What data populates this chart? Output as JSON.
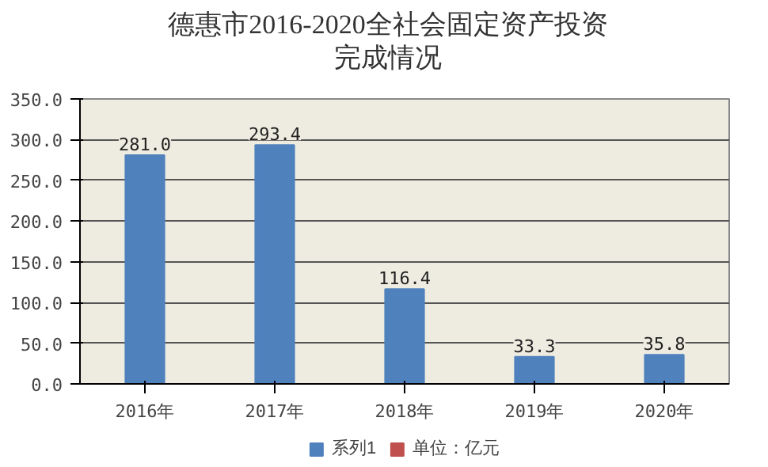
{
  "chart_data": {
    "type": "bar",
    "title": "德惠市2016-2020全社会固定资产投资完成情况",
    "categories": [
      "2016年",
      "2017年",
      "2018年",
      "2019年",
      "2020年"
    ],
    "series": [
      {
        "name": "系列1",
        "color": "#4f81bd",
        "values": [
          281.0,
          293.4,
          116.4,
          33.3,
          35.8
        ],
        "value_labels": [
          "281.0",
          "293.4",
          "116.4",
          "33.3",
          "35.8"
        ]
      },
      {
        "name": "单位：亿元",
        "color": "#c0504d",
        "values": [
          null,
          null,
          null,
          null,
          null
        ]
      }
    ],
    "ylim": [
      0,
      350
    ],
    "yticks": [
      {
        "value": 0,
        "label": "0.0"
      },
      {
        "value": 50,
        "label": "50.0"
      },
      {
        "value": 100,
        "label": "100.0"
      },
      {
        "value": 150,
        "label": "150.0"
      },
      {
        "value": 200,
        "label": "200.0"
      },
      {
        "value": 250,
        "label": "250.0"
      },
      {
        "value": 300,
        "label": "300.0"
      },
      {
        "value": 350,
        "label": "350.0"
      }
    ],
    "grid": "y",
    "legend": "bottom"
  }
}
